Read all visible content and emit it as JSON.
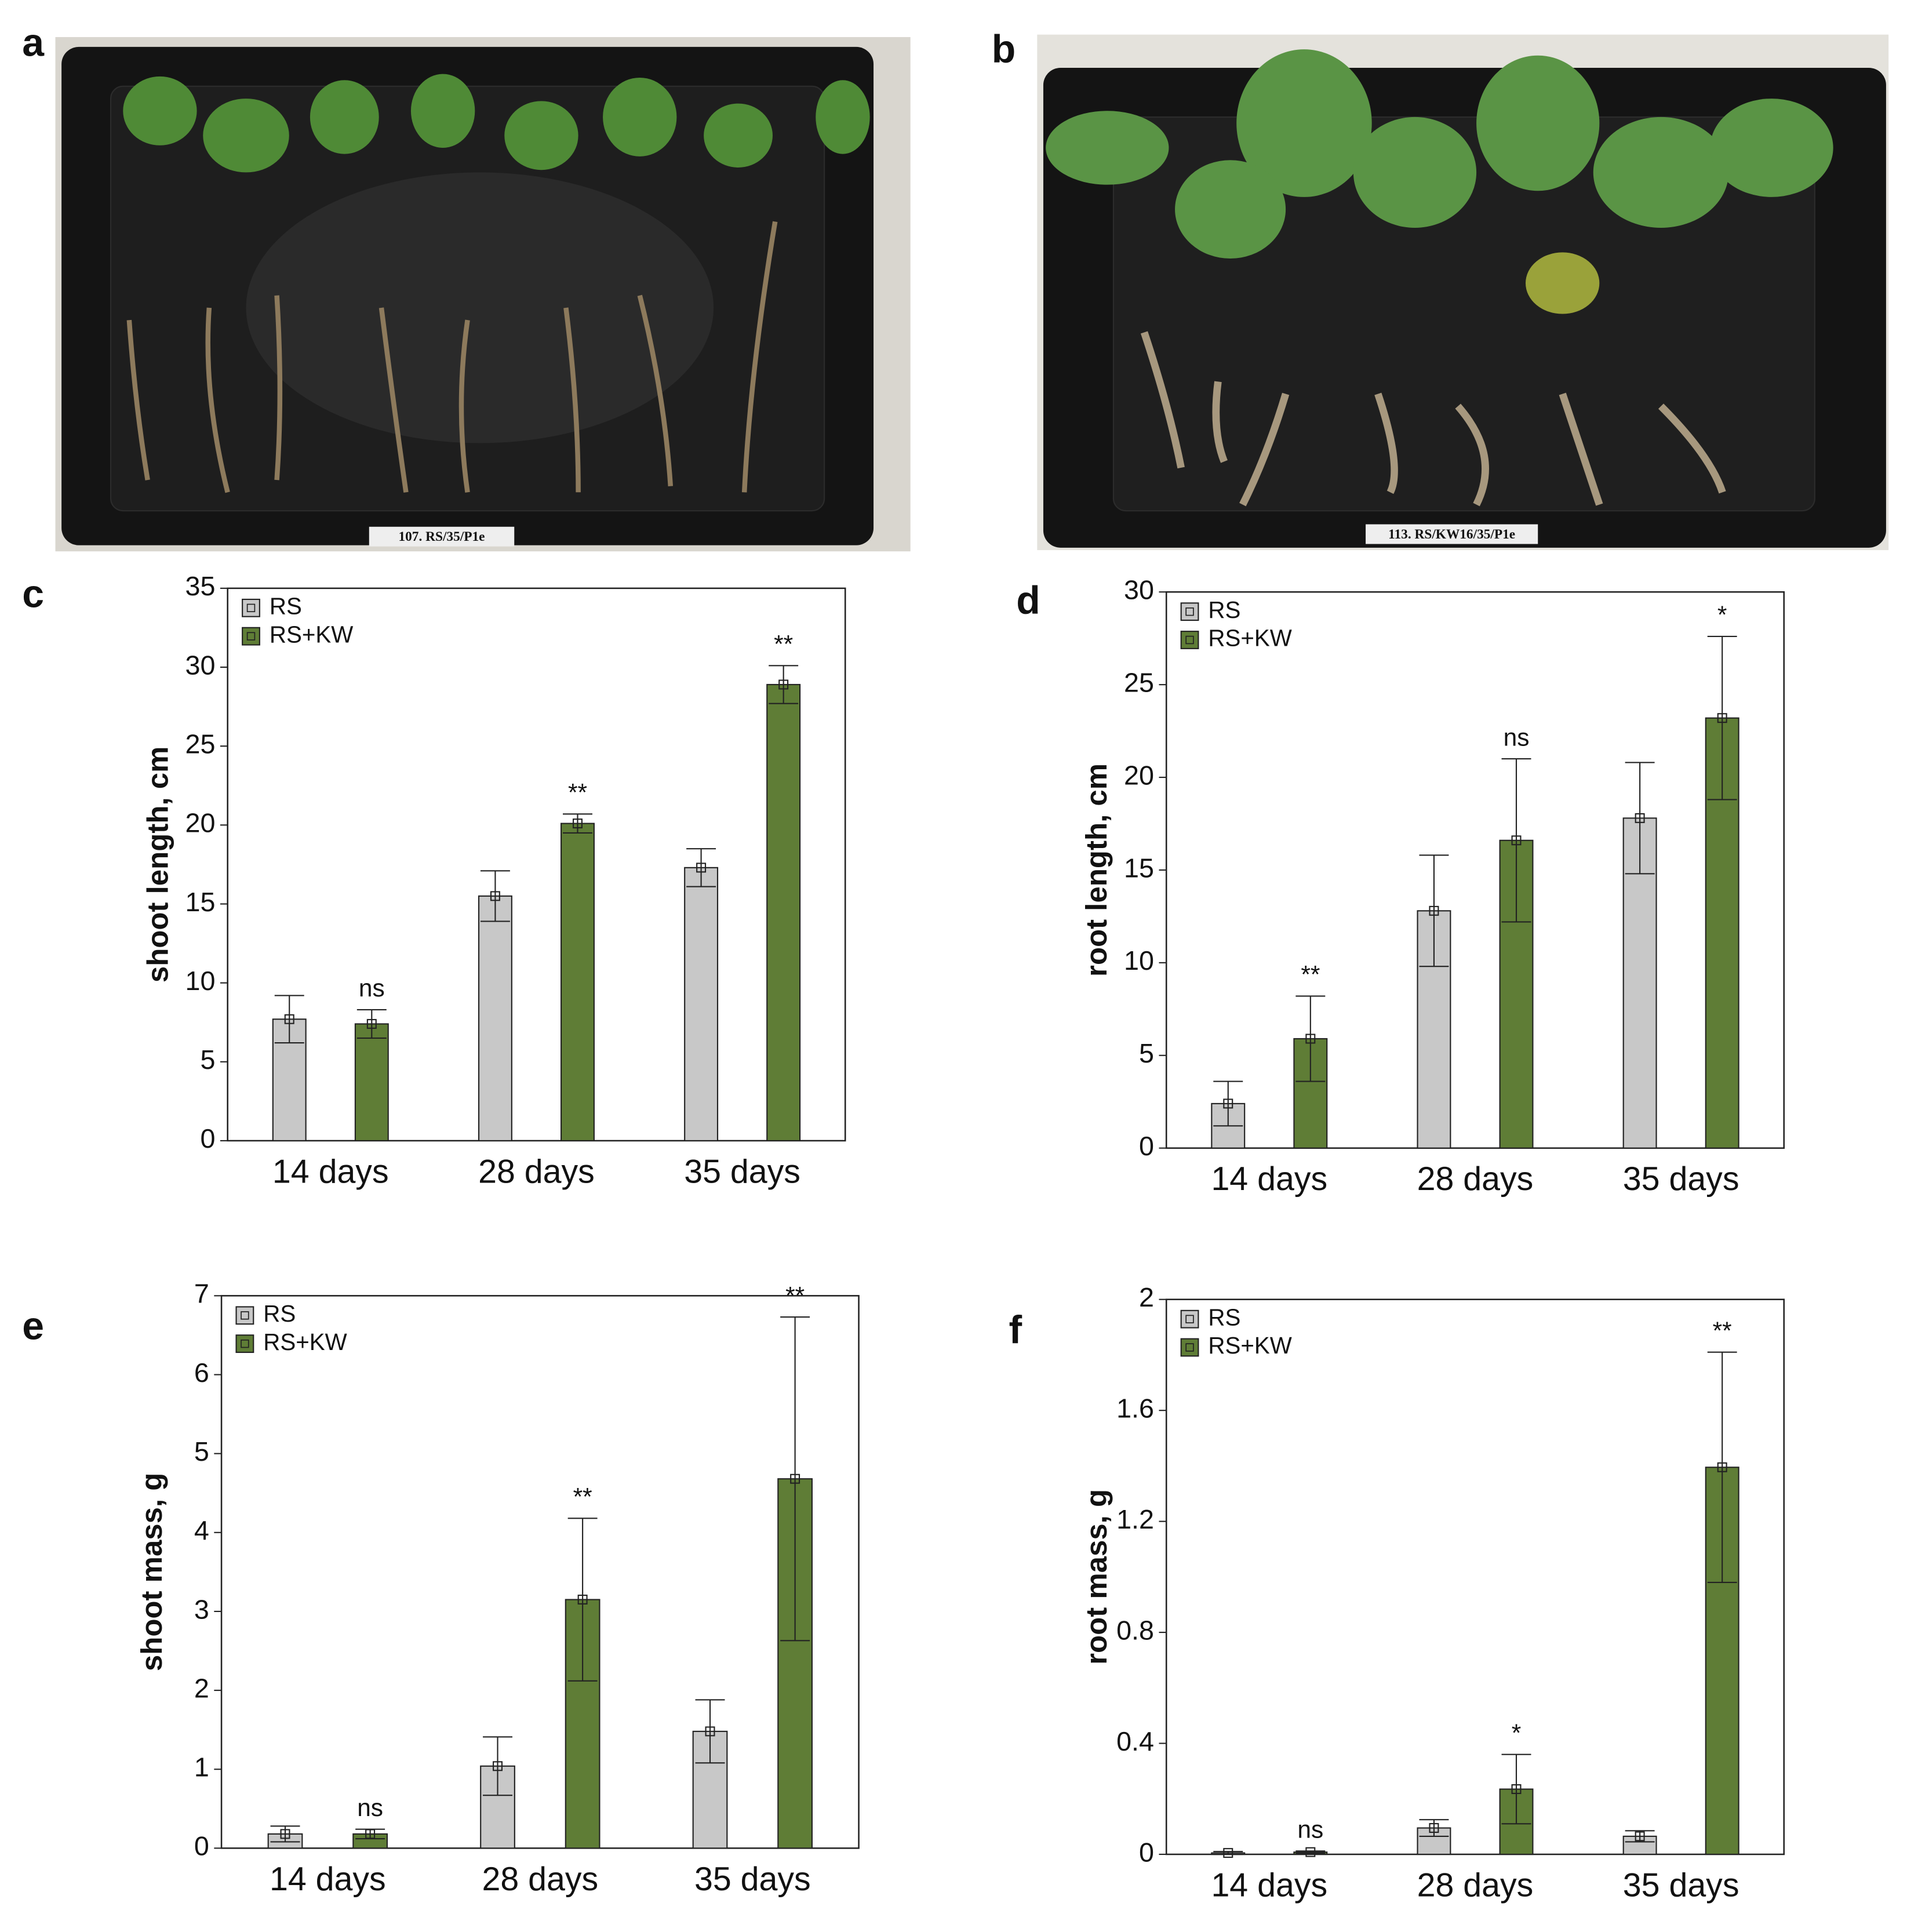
{
  "photos": [
    {
      "label": "a",
      "tray_label": "107. RS/35/P1e"
    },
    {
      "label": "b",
      "tray_label": "113. RS/KW16/35/P1e"
    }
  ],
  "chart_data": [
    {
      "type": "bar",
      "label": "c",
      "y_label": "shoot length, cm",
      "categories": [
        "14 days",
        "28 days",
        "35 days"
      ],
      "series": [
        {
          "name": "RS",
          "color": "#c8c8c8",
          "values": [
            7.7,
            15.5,
            17.3
          ],
          "errors": [
            1.5,
            1.6,
            1.2
          ]
        },
        {
          "name": "RS+KW",
          "color": "#5f7d36",
          "values": [
            7.4,
            20.1,
            28.9
          ],
          "errors": [
            0.9,
            0.6,
            1.2
          ]
        }
      ],
      "annotations": [
        "ns",
        "**",
        "**"
      ],
      "ylim": [
        0,
        35
      ],
      "yticks": [
        0,
        5,
        10,
        15,
        20,
        25,
        30,
        35
      ],
      "legend": "upper left"
    },
    {
      "type": "bar",
      "label": "d",
      "y_label": "root length, cm",
      "categories": [
        "14 days",
        "28 days",
        "35 days"
      ],
      "series": [
        {
          "name": "RS",
          "color": "#c8c8c8",
          "values": [
            2.4,
            12.8,
            17.8
          ],
          "errors": [
            1.2,
            3.0,
            3.0
          ]
        },
        {
          "name": "RS+KW",
          "color": "#5f7d36",
          "values": [
            5.9,
            16.6,
            23.2
          ],
          "errors": [
            2.3,
            4.4,
            4.4
          ]
        }
      ],
      "annotations": [
        "**",
        "ns",
        "*"
      ],
      "ylim": [
        0,
        30
      ],
      "yticks": [
        0,
        5,
        10,
        15,
        20,
        25,
        30
      ],
      "legend": "upper left"
    },
    {
      "type": "bar",
      "label": "e",
      "y_label": "shoot mass, g",
      "categories": [
        "14 days",
        "28 days",
        "35 days"
      ],
      "series": [
        {
          "name": "RS",
          "color": "#c8c8c8",
          "values": [
            0.18,
            1.04,
            1.48
          ],
          "errors": [
            0.1,
            0.37,
            0.4
          ]
        },
        {
          "name": "RS+KW",
          "color": "#5f7d36",
          "values": [
            0.18,
            3.15,
            4.68
          ],
          "errors": [
            0.06,
            1.03,
            2.05
          ]
        }
      ],
      "annotations": [
        "ns",
        "**",
        "**"
      ],
      "ylim": [
        0,
        7
      ],
      "yticks": [
        0,
        1,
        2,
        3,
        4,
        5,
        6,
        7
      ],
      "legend": "upper left"
    },
    {
      "type": "bar",
      "label": "f",
      "y_label": "root mass, g",
      "categories": [
        "14 days",
        "28 days",
        "35 days"
      ],
      "series": [
        {
          "name": "RS",
          "color": "#c8c8c8",
          "values": [
            0.005,
            0.095,
            0.065
          ],
          "errors": [
            0.005,
            0.03,
            0.02
          ]
        },
        {
          "name": "RS+KW",
          "color": "#5f7d36",
          "values": [
            0.008,
            0.235,
            1.395
          ],
          "errors": [
            0.004,
            0.125,
            0.415
          ]
        }
      ],
      "annotations": [
        "ns",
        "*",
        "**"
      ],
      "ylim": [
        0,
        2
      ],
      "yticks": [
        0,
        0.4,
        0.8,
        1.2,
        1.6,
        2
      ],
      "legend": "upper left"
    }
  ]
}
